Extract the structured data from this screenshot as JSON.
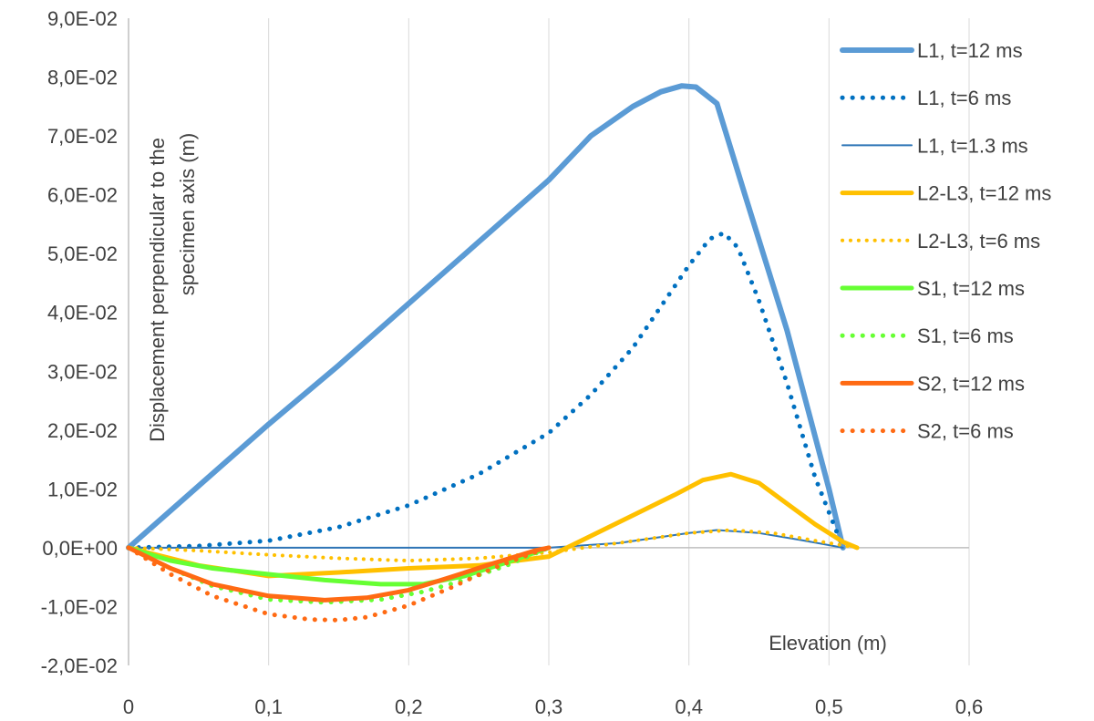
{
  "chart_data": {
    "type": "line",
    "xlabel": "Elevation (m)",
    "ylabel_line1": "Displacement perpendicular to the",
    "ylabel_line2": "specimen axis (m)",
    "xlim": [
      0,
      0.6
    ],
    "ylim": [
      -0.02,
      0.09
    ],
    "x_ticks": [
      0,
      0.1,
      0.2,
      0.3,
      0.4,
      0.5,
      0.6
    ],
    "x_tick_labels": [
      "0",
      "0,1",
      "0,2",
      "0,3",
      "0,4",
      "0,5",
      "0,6"
    ],
    "y_ticks": [
      -0.02,
      -0.01,
      0,
      0.01,
      0.02,
      0.03,
      0.04,
      0.05,
      0.06,
      0.07,
      0.08,
      0.09
    ],
    "y_tick_labels": [
      "-2,0E-02",
      "-1,0E-02",
      "0,0E+00",
      "1,0E-02",
      "2,0E-02",
      "3,0E-02",
      "4,0E-02",
      "5,0E-02",
      "6,0E-02",
      "7,0E-02",
      "8,0E-02",
      "9,0E-02"
    ],
    "grid": "vertical",
    "legend_position": "right",
    "series": [
      {
        "name": "L1, t=12 ms",
        "color": "#5b9bd5",
        "style": "solid",
        "width": 6,
        "x": [
          0,
          0.05,
          0.1,
          0.15,
          0.2,
          0.25,
          0.3,
          0.33,
          0.36,
          0.38,
          0.395,
          0.405,
          0.42,
          0.44,
          0.47,
          0.5,
          0.51
        ],
        "y": [
          0,
          0.0105,
          0.021,
          0.031,
          0.0415,
          0.052,
          0.0625,
          0.07,
          0.075,
          0.0775,
          0.0785,
          0.0783,
          0.0755,
          0.06,
          0.037,
          0.01,
          0
        ]
      },
      {
        "name": "L1, t=6 ms",
        "color": "#0070c0",
        "style": "dotted",
        "width": 5,
        "x": [
          0,
          0.05,
          0.1,
          0.15,
          0.2,
          0.25,
          0.3,
          0.33,
          0.36,
          0.38,
          0.4,
          0.415,
          0.425,
          0.435,
          0.45,
          0.47,
          0.49,
          0.51
        ],
        "y": [
          0,
          0.0003,
          0.0012,
          0.0035,
          0.0072,
          0.0125,
          0.0195,
          0.026,
          0.034,
          0.041,
          0.048,
          0.0525,
          0.0535,
          0.051,
          0.042,
          0.028,
          0.012,
          0
        ]
      },
      {
        "name": "L1, t=1.3 ms",
        "color": "#2e75b6",
        "style": "solid",
        "width": 2,
        "x": [
          0,
          0.1,
          0.2,
          0.3,
          0.35,
          0.4,
          0.42,
          0.45,
          0.48,
          0.51
        ],
        "y": [
          0,
          0,
          0,
          0,
          0.0008,
          0.0025,
          0.003,
          0.0025,
          0.0013,
          0
        ]
      },
      {
        "name": "L2-L3, t=12 ms",
        "color": "#ffc000",
        "style": "solid",
        "width": 5,
        "x": [
          0,
          0.05,
          0.1,
          0.15,
          0.2,
          0.25,
          0.3,
          0.33,
          0.36,
          0.39,
          0.41,
          0.43,
          0.45,
          0.47,
          0.49,
          0.51,
          0.52
        ],
        "y": [
          0,
          -0.003,
          -0.0048,
          -0.0042,
          -0.0035,
          -0.003,
          -0.0015,
          0.002,
          0.0055,
          0.009,
          0.0115,
          0.0125,
          0.011,
          0.0075,
          0.004,
          0.001,
          0
        ]
      },
      {
        "name": "L2-L3, t=6 ms",
        "color": "#ffc000",
        "style": "dotted",
        "width": 4,
        "x": [
          0,
          0.05,
          0.1,
          0.15,
          0.2,
          0.25,
          0.3,
          0.35,
          0.4,
          0.43,
          0.46,
          0.49,
          0.52
        ],
        "y": [
          0,
          -0.0005,
          -0.0012,
          -0.0018,
          -0.0022,
          -0.0018,
          -0.0008,
          0.0008,
          0.0025,
          0.003,
          0.0025,
          0.0012,
          0
        ]
      },
      {
        "name": "S1, t=12 ms",
        "color": "#66ff33",
        "style": "solid",
        "width": 5,
        "x": [
          0,
          0.03,
          0.06,
          0.1,
          0.14,
          0.18,
          0.21,
          0.24,
          0.27,
          0.3
        ],
        "y": [
          0,
          -0.0022,
          -0.0035,
          -0.0045,
          -0.0055,
          -0.0062,
          -0.0062,
          -0.0048,
          -0.0025,
          0
        ]
      },
      {
        "name": "S1, t=6 ms",
        "color": "#66ff33",
        "style": "dotted",
        "width": 5,
        "x": [
          0,
          0.03,
          0.06,
          0.1,
          0.14,
          0.18,
          0.21,
          0.24,
          0.27,
          0.3
        ],
        "y": [
          0,
          -0.0035,
          -0.0065,
          -0.0088,
          -0.0093,
          -0.0088,
          -0.0075,
          -0.0055,
          -0.003,
          0
        ]
      },
      {
        "name": "S2, t=12 ms",
        "color": "#ff6a13",
        "style": "solid",
        "width": 5,
        "x": [
          0,
          0.03,
          0.06,
          0.1,
          0.14,
          0.17,
          0.2,
          0.23,
          0.26,
          0.29,
          0.3
        ],
        "y": [
          0,
          -0.0035,
          -0.0062,
          -0.0082,
          -0.0089,
          -0.0085,
          -0.0072,
          -0.005,
          -0.0027,
          -0.0005,
          0
        ]
      },
      {
        "name": "S2, t=6 ms",
        "color": "#ff6a13",
        "style": "dotted",
        "width": 5,
        "x": [
          0,
          0.03,
          0.06,
          0.1,
          0.13,
          0.15,
          0.17,
          0.2,
          0.23,
          0.26,
          0.29,
          0.3
        ],
        "y": [
          0,
          -0.0045,
          -0.0082,
          -0.0113,
          -0.0122,
          -0.0123,
          -0.0118,
          -0.0098,
          -0.0068,
          -0.0035,
          -0.0008,
          0
        ]
      }
    ]
  }
}
